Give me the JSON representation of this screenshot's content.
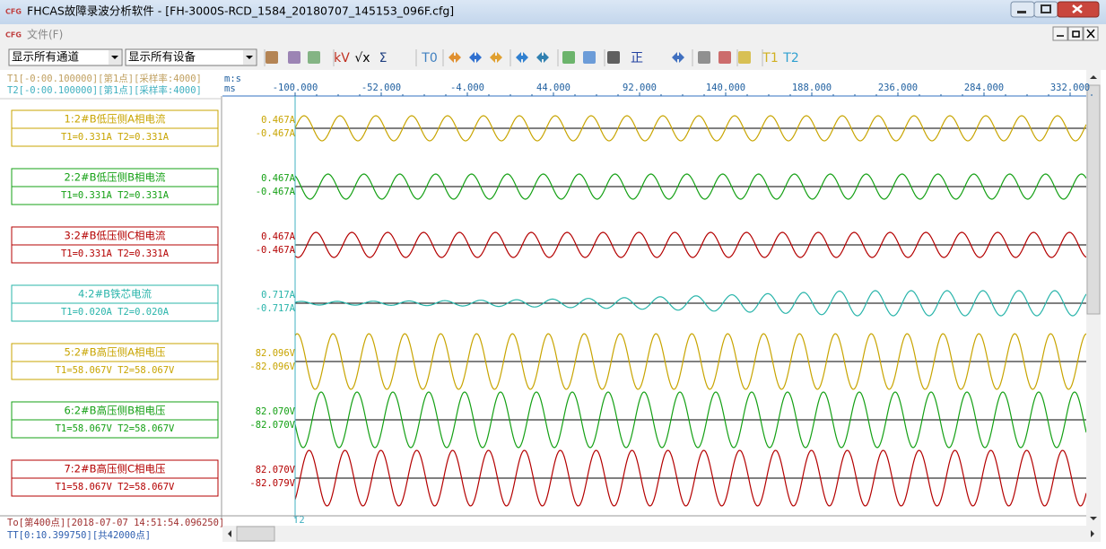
{
  "window": {
    "title": "FHCAS故障录波分析软件 - [FH-3000S-RCD_1584_20180707_145153_096F.cfg]",
    "icon": "CFG"
  },
  "menu": {
    "items": [
      "文件(F)"
    ]
  },
  "toolbar": {
    "selects": [
      "显示所有通道",
      "显示所有设备"
    ],
    "labels": [
      "kV",
      "√x",
      "Σ",
      "T0",
      "正",
      "T1",
      "T2"
    ]
  },
  "header": {
    "cursor_t1": "T1[-0:00.100000][第1点][采样率:4000]",
    "cursor_t2": "T2[-0:00.100000][第1点][采样率:4000]",
    "unit_top": "m:s",
    "unit_bottom": "ms",
    "time_ticks": [
      "-100.000",
      "-52.000",
      "-4.000",
      "44.000",
      "92.000",
      "140.000",
      "188.000",
      "236.000",
      "284.000",
      "332.000"
    ]
  },
  "channels": [
    {
      "name": "1:2#B低压侧A相电流",
      "readout": "T1=0.331A T2=0.331A",
      "max": "0.467A",
      "min": "-0.467A",
      "color": "#c8a400"
    },
    {
      "name": "2:2#B低压侧B相电流",
      "readout": "T1=0.331A T2=0.331A",
      "max": "0.467A",
      "min": "-0.467A",
      "color": "#14a014"
    },
    {
      "name": "3:2#B低压侧C相电流",
      "readout": "T1=0.331A T2=0.331A",
      "max": "0.467A",
      "min": "-0.467A",
      "color": "#b40000"
    },
    {
      "name": "4:2#B铁芯电流",
      "readout": "T1=0.020A T2=0.020A",
      "max": "0.717A",
      "min": "-0.717A",
      "color": "#28b4aa"
    },
    {
      "name": "5:2#B高压侧A相电压",
      "readout": "T1=58.067V T2=58.067V",
      "max": "82.096V",
      "min": "-82.096V",
      "color": "#c8a400"
    },
    {
      "name": "6:2#B高压侧B相电压",
      "readout": "T1=58.067V T2=58.067V",
      "max": "82.070V",
      "min": "-82.070V",
      "color": "#14a014"
    },
    {
      "name": "7:2#B高压侧C相电压",
      "readout": "T1=58.067V T2=58.067V",
      "max": "82.070V",
      "min": "-82.079V",
      "color": "#b40000"
    }
  ],
  "cursor_marker": "T2",
  "footer": {
    "line1": "To[第400点][2018-07-07 14:51:54.096250]",
    "line2": "TT[0:10.399750][共42000点]"
  }
}
